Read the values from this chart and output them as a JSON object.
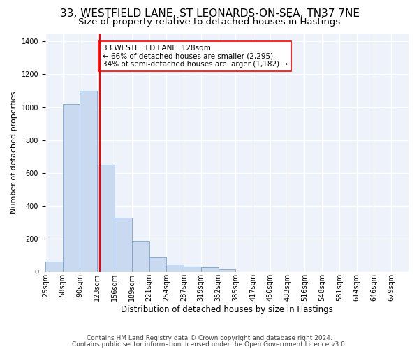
{
  "title1": "33, WESTFIELD LANE, ST LEONARDS-ON-SEA, TN37 7NE",
  "title2": "Size of property relative to detached houses in Hastings",
  "xlabel": "Distribution of detached houses by size in Hastings",
  "ylabel": "Number of detached properties",
  "footnote1": "Contains HM Land Registry data © Crown copyright and database right 2024.",
  "footnote2": "Contains public sector information licensed under the Open Government Licence v3.0.",
  "annotation_line1": "33 WESTFIELD LANE: 128sqm",
  "annotation_line2": "← 66% of detached houses are smaller (2,295)",
  "annotation_line3": "34% of semi-detached houses are larger (1,182) →",
  "bar_color": "#c9d9f0",
  "bar_edge_color": "#7ba3cc",
  "redline_value": 128,
  "categories": [
    "25sqm",
    "58sqm",
    "90sqm",
    "123sqm",
    "156sqm",
    "189sqm",
    "221sqm",
    "254sqm",
    "287sqm",
    "319sqm",
    "352sqm",
    "385sqm",
    "417sqm",
    "450sqm",
    "483sqm",
    "516sqm",
    "548sqm",
    "581sqm",
    "614sqm",
    "646sqm",
    "679sqm"
  ],
  "values": [
    60,
    1020,
    1100,
    650,
    330,
    190,
    90,
    45,
    30,
    25,
    15,
    0,
    0,
    0,
    0,
    0,
    0,
    0,
    0,
    0,
    0
  ],
  "ylim": [
    0,
    1450
  ],
  "yticks": [
    0,
    200,
    400,
    600,
    800,
    1000,
    1200,
    1400
  ],
  "background_color": "#eef2fb",
  "grid_color": "#ffffff",
  "title1_fontsize": 11,
  "title2_fontsize": 9.5,
  "xlabel_fontsize": 8.5,
  "ylabel_fontsize": 8,
  "annotation_fontsize": 7.5,
  "footnote_fontsize": 6.5,
  "tick_fontsize": 7
}
